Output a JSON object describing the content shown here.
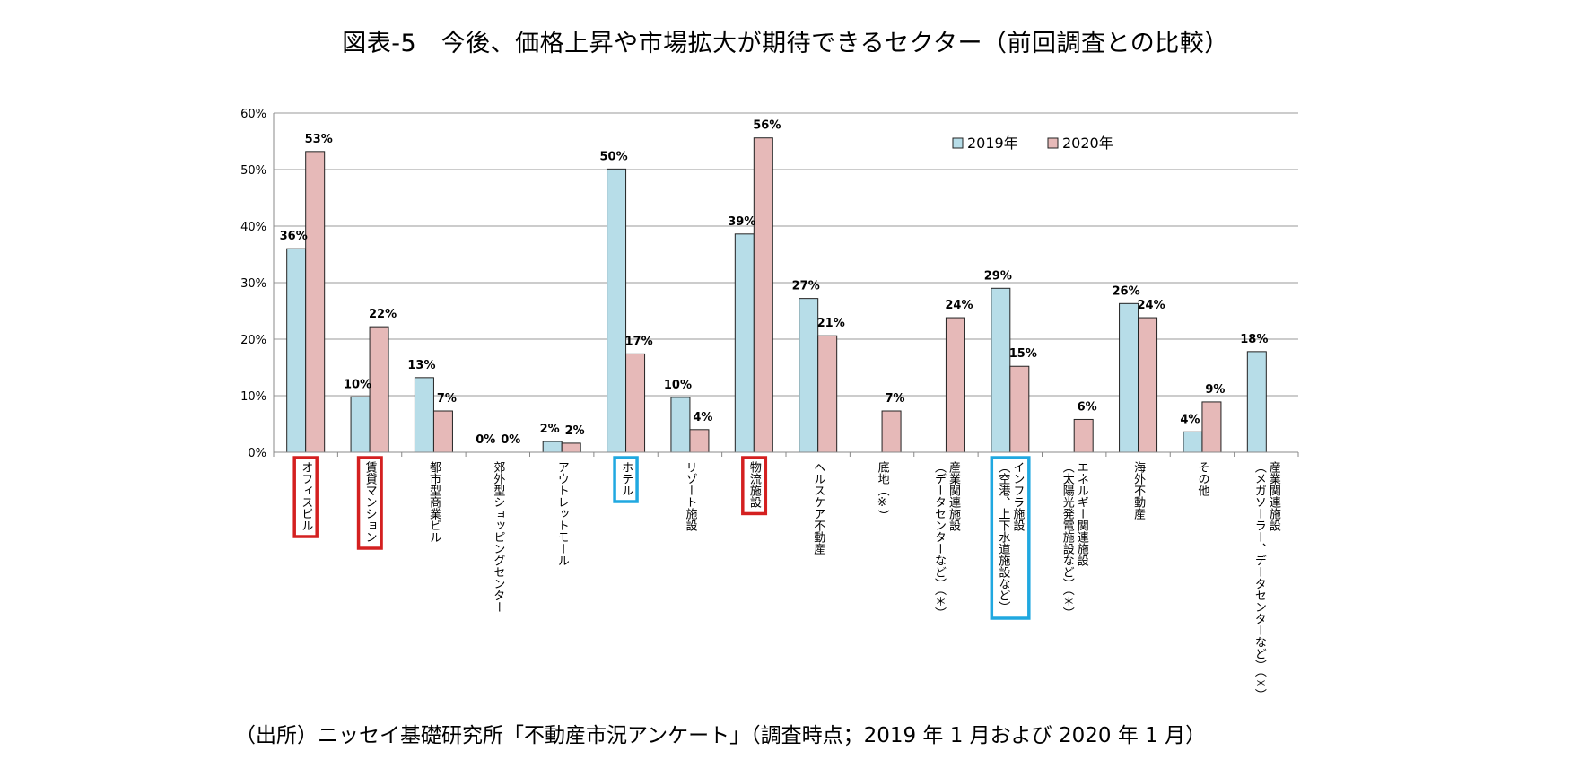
{
  "title": "図表-5　今後、価格上昇や市場拡大が期待できるセクター（前回調査との比較）",
  "source": "（出所）ニッセイ基礎研究所「不動産市況アンケート」（調査時点；2019 年 1 月および 2020 年 1 月）",
  "colors": {
    "series_2019": "#b7dde8",
    "series_2020": "#e6b9b8",
    "highlight_red": "#d42020",
    "highlight_blue": "#20a8e0",
    "grid": "#999999"
  },
  "chart_data": {
    "type": "bar",
    "title": "図表-5　今後、価格上昇や市場拡大が期待できるセクター（前回調査との比較）",
    "xlabel": "",
    "ylabel": "",
    "ylim": [
      0,
      60
    ],
    "yticks": [
      "0%",
      "10%",
      "20%",
      "30%",
      "40%",
      "50%",
      "60%"
    ],
    "grid": true,
    "legend_position": "top-right",
    "categories": [
      {
        "lines": [
          "オフィスビル"
        ],
        "highlight": "red"
      },
      {
        "lines": [
          "賃貸マンション"
        ],
        "highlight": "red"
      },
      {
        "lines": [
          "都市型商業ビル"
        ],
        "highlight": null
      },
      {
        "lines": [
          "郊外型ショッピングセンター"
        ],
        "highlight": null
      },
      {
        "lines": [
          "アウトレットモール"
        ],
        "highlight": null
      },
      {
        "lines": [
          "ホテル"
        ],
        "highlight": "blue"
      },
      {
        "lines": [
          "リゾート施設"
        ],
        "highlight": null
      },
      {
        "lines": [
          "物流施設"
        ],
        "highlight": "red"
      },
      {
        "lines": [
          "ヘルスケア不動産"
        ],
        "highlight": null
      },
      {
        "lines": [
          "底地（※）"
        ],
        "highlight": null
      },
      {
        "lines": [
          "産業関連施設",
          "（データセンターなど）（＊）"
        ],
        "highlight": null
      },
      {
        "lines": [
          "インフラ施設",
          "（空港、上下水道施設など）"
        ],
        "highlight": "blue"
      },
      {
        "lines": [
          "エネルギー関連施設",
          "（太陽光発電施設など）（＊）"
        ],
        "highlight": null
      },
      {
        "lines": [
          "海外不動産"
        ],
        "highlight": null
      },
      {
        "lines": [
          "その他"
        ],
        "highlight": null
      },
      {
        "lines": [
          "産業関連施設",
          "（メガソーラー、データセンターなど）（＊）"
        ],
        "highlight": null
      }
    ],
    "series": [
      {
        "name": "2019年",
        "values": [
          36,
          9.8,
          13.2,
          0,
          1.9,
          50.1,
          9.7,
          38.6,
          27.2,
          null,
          null,
          29,
          null,
          26.3,
          3.6,
          17.8
        ],
        "labels": [
          "36%",
          "10%",
          "13%",
          "0%",
          "2%",
          "50%",
          "10%",
          "39%",
          "27%",
          null,
          null,
          "29%",
          null,
          "26%",
          "4%",
          "18%"
        ]
      },
      {
        "name": "2020年",
        "values": [
          53.2,
          22.2,
          7.3,
          0,
          1.6,
          17.4,
          4,
          55.6,
          20.6,
          7.3,
          23.8,
          15.2,
          5.8,
          23.8,
          8.9,
          null
        ],
        "labels": [
          "53%",
          "22%",
          "7%",
          "0%",
          "2%",
          "17%",
          "4%",
          "56%",
          "21%",
          "7%",
          "24%",
          "15%",
          "6%",
          "24%",
          "9%",
          null
        ]
      }
    ]
  }
}
